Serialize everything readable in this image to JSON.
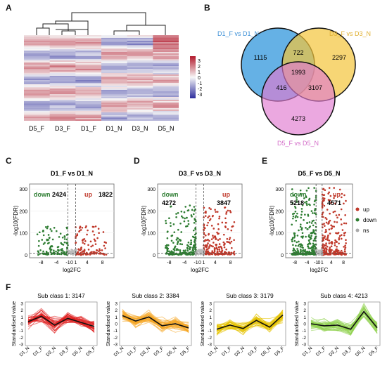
{
  "panels": [
    "A",
    "B",
    "C",
    "D",
    "E",
    "F"
  ],
  "heatmap": {
    "columns": [
      "D5_F",
      "D3_F",
      "D1_F",
      "D1_N",
      "D3_N",
      "D5_N"
    ],
    "scale_ticks": [
      "3",
      "2",
      "1",
      "0",
      "-1",
      "-2",
      "-3"
    ],
    "colors": {
      "high": "#b2182b",
      "mid": "#f7f7f7",
      "low": "#2c2c9c"
    }
  },
  "venn": {
    "sets": [
      {
        "label": "D1_F  vs  D1_N",
        "color": "#4aa3e0",
        "label_color": "#3b8fd6"
      },
      {
        "label": "D3_F  vs  D3_N",
        "color": "#f3c53a",
        "label_color": "#e0b030"
      },
      {
        "label": "D5_F  vs  D5_N",
        "color": "#e07ad0",
        "label_color": "#d46ec9"
      }
    ],
    "counts": {
      "a_only": "1115",
      "b_only": "2297",
      "c_only": "4273",
      "ab": "722",
      "ac": "416",
      "bc": "3107",
      "abc": "1993"
    }
  },
  "volcano": {
    "ylabel": "-log10(FDR)",
    "xlabel": "log2FC",
    "plots": [
      {
        "title": "D1_F  vs  D1_N",
        "down_label": "down",
        "down": "2424",
        "up_label": "up",
        "up": "1822",
        "yticks": [
          "300",
          "200",
          "100",
          "0"
        ],
        "xticks": [
          "-8",
          "-4",
          "-1",
          "0",
          "1",
          "4",
          "8"
        ]
      },
      {
        "title": "D3_F  vs  D3_N",
        "down_label": "down",
        "down": "4272",
        "up_label": "up",
        "up": "3847",
        "yticks": [
          "300",
          "200",
          "100",
          "0"
        ],
        "xticks": [
          "-8",
          "-4",
          "-1",
          "0",
          "1",
          "4",
          "8"
        ]
      },
      {
        "title": "D5_F  vs  D5_N",
        "down_label": "down",
        "down": "5218",
        "up_label": "up",
        "up": "4571",
        "yticks": [
          "300",
          "200",
          "100",
          "0"
        ],
        "xticks": [
          "-8",
          "-4",
          "-1",
          "0",
          "1",
          "4",
          "8"
        ]
      }
    ],
    "legend": [
      {
        "label": "up",
        "color": "#c0392b"
      },
      {
        "label": "down",
        "color": "#2e7d32"
      },
      {
        "label": "ns",
        "color": "#aaaaaa"
      }
    ]
  },
  "subclasses": {
    "ylabel": "Standardised value",
    "yticks": [
      "3",
      "2",
      "1",
      "0",
      "-1",
      "-2",
      "-3"
    ],
    "xticks": [
      "D1_N",
      "D1_F",
      "D3_N",
      "D3_F",
      "D5_N",
      "D5_F"
    ],
    "items": [
      {
        "title": "Sub class 1: 3147",
        "color": "#e02020",
        "mean": [
          0.3,
          1.1,
          -0.2,
          0.8,
          0.2,
          -0.4
        ]
      },
      {
        "title": "Sub class 2: 3384",
        "color": "#f5a623",
        "mean": [
          1.2,
          0.4,
          1.0,
          -0.3,
          0.0,
          -0.6
        ]
      },
      {
        "title": "Sub class 3: 3179",
        "color": "#e6c200",
        "mean": [
          -0.8,
          -0.2,
          -0.7,
          0.5,
          -0.5,
          1.3
        ]
      },
      {
        "title": "Sub class 4: 4213",
        "color": "#8fd14f",
        "mean": [
          0.0,
          -0.3,
          -0.2,
          -0.8,
          1.8,
          -0.6
        ]
      }
    ]
  }
}
